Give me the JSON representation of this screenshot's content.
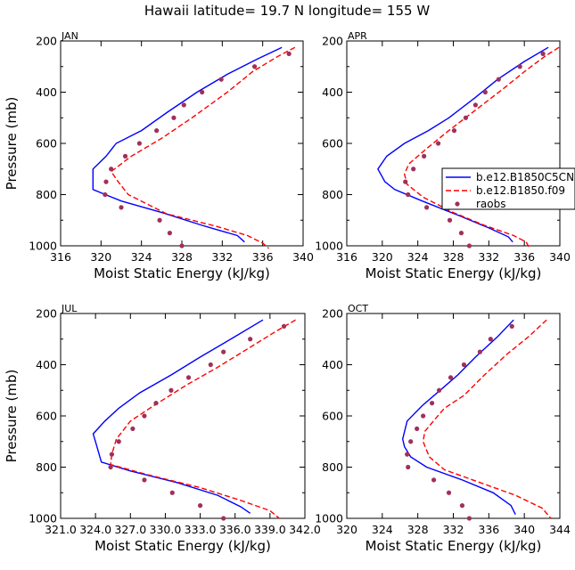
{
  "figure_title": "Hawaii  latitude= 19.7 N longitude= 155 W",
  "colors": {
    "model_c5": "#0000ff",
    "model_f09": "#ff0000",
    "roobs": "#a0305a"
  },
  "legend": {
    "entries": [
      "b.e12.B1850C5CN",
      "b.e12.B1850.f09",
      "raobs"
    ],
    "panel": "APR"
  },
  "chart_data": [
    {
      "type": "line",
      "panel": "JAN",
      "title": "JAN",
      "xlabel": "Moist Static Energy (kJ/kg)",
      "ylabel": "Pressure (mb)",
      "xlim": [
        316,
        340
      ],
      "ylim": [
        1000,
        200
      ],
      "xticks": [
        "316",
        "320",
        "324",
        "328",
        "332",
        "336",
        "340"
      ],
      "xtick_values": [
        316,
        320,
        324,
        328,
        332,
        336,
        340
      ],
      "yticks": [
        "200",
        "400",
        "600",
        "800",
        "1000"
      ],
      "ytick_values": [
        200,
        400,
        600,
        800,
        1000
      ],
      "series": [
        {
          "name": "b.e12.B1850C5CN",
          "style": "solid",
          "points": [
            [
              337.9,
              225
            ],
            [
              335.5,
              270
            ],
            [
              332.5,
              330
            ],
            [
              329.5,
              400
            ],
            [
              326.5,
              480
            ],
            [
              324.0,
              550
            ],
            [
              321.5,
              600
            ],
            [
              320.5,
              650
            ],
            [
              319.2,
              700
            ],
            [
              319.2,
              780
            ],
            [
              322.0,
              825
            ],
            [
              326.0,
              870
            ],
            [
              330.0,
              920
            ],
            [
              333.5,
              960
            ],
            [
              334.2,
              985
            ]
          ]
        },
        {
          "name": "b.e12.B1850.f09",
          "style": "dashed",
          "points": [
            [
              339.2,
              225
            ],
            [
              337.5,
              260
            ],
            [
              335.0,
              320
            ],
            [
              332.5,
              400
            ],
            [
              329.0,
              500
            ],
            [
              326.0,
              580
            ],
            [
              323.0,
              650
            ],
            [
              321.0,
              710
            ],
            [
              321.7,
              750
            ],
            [
              322.7,
              800
            ],
            [
              326.5,
              875
            ],
            [
              331.5,
              925
            ],
            [
              334.5,
              960
            ],
            [
              336.0,
              990
            ],
            [
              336.6,
              1010
            ]
          ]
        },
        {
          "name": "raobs",
          "style": "dots",
          "points": [
            [
              338.6,
              250
            ],
            [
              335.2,
              300
            ],
            [
              331.9,
              350
            ],
            [
              330.0,
              400
            ],
            [
              328.2,
              450
            ],
            [
              327.2,
              500
            ],
            [
              325.5,
              550
            ],
            [
              323.8,
              600
            ],
            [
              322.4,
              650
            ],
            [
              321.0,
              700
            ],
            [
              320.5,
              750
            ],
            [
              320.4,
              800
            ],
            [
              322.0,
              850
            ],
            [
              325.8,
              900
            ],
            [
              326.8,
              950
            ],
            [
              328.0,
              1000
            ]
          ]
        }
      ]
    },
    {
      "type": "line",
      "panel": "APR",
      "title": "APR",
      "xlabel": "Moist Static Energy (kJ/kg)",
      "ylabel": "",
      "xlim": [
        316,
        340
      ],
      "ylim": [
        1000,
        200
      ],
      "xticks": [
        "316",
        "320",
        "324",
        "328",
        "332",
        "336",
        "340"
      ],
      "xtick_values": [
        316,
        320,
        324,
        328,
        332,
        336,
        340
      ],
      "yticks": [
        "200",
        "400",
        "600",
        "800",
        "1000"
      ],
      "ytick_values": [
        200,
        400,
        600,
        800,
        1000
      ],
      "series": [
        {
          "name": "b.e12.B1850C5CN",
          "style": "solid",
          "points": [
            [
              338.7,
              225
            ],
            [
              336.0,
              280
            ],
            [
              333.0,
              350
            ],
            [
              330.5,
              420
            ],
            [
              327.5,
              500
            ],
            [
              325.2,
              550
            ],
            [
              322.5,
              600
            ],
            [
              320.5,
              650
            ],
            [
              319.5,
              700
            ],
            [
              320.3,
              750
            ],
            [
              321.4,
              780
            ],
            [
              324.5,
              825
            ],
            [
              328.5,
              880
            ],
            [
              332.0,
              930
            ],
            [
              334.2,
              965
            ],
            [
              334.7,
              985
            ]
          ]
        },
        {
          "name": "b.e12.B1850.f09",
          "style": "dashed",
          "points": [
            [
              339.9,
              225
            ],
            [
              338.3,
              260
            ],
            [
              336.0,
              320
            ],
            [
              333.5,
              390
            ],
            [
              330.5,
              470
            ],
            [
              327.5,
              550
            ],
            [
              325.0,
              620
            ],
            [
              323.0,
              680
            ],
            [
              322.5,
              720
            ],
            [
              322.8,
              760
            ],
            [
              324.6,
              810
            ],
            [
              328.0,
              870
            ],
            [
              331.5,
              920
            ],
            [
              334.8,
              960
            ],
            [
              336.2,
              985
            ],
            [
              336.6,
              1010
            ]
          ]
        },
        {
          "name": "raobs",
          "style": "dots",
          "points": [
            [
              338.1,
              250
            ],
            [
              335.5,
              300
            ],
            [
              333.1,
              350
            ],
            [
              331.6,
              400
            ],
            [
              330.5,
              450
            ],
            [
              329.4,
              500
            ],
            [
              328.1,
              550
            ],
            [
              326.3,
              600
            ],
            [
              324.7,
              650
            ],
            [
              323.5,
              700
            ],
            [
              322.6,
              750
            ],
            [
              322.9,
              800
            ],
            [
              325.0,
              850
            ],
            [
              327.6,
              900
            ],
            [
              328.9,
              950
            ],
            [
              329.8,
              1000
            ]
          ]
        }
      ]
    },
    {
      "type": "line",
      "panel": "JUL",
      "title": "JUL",
      "xlabel": "Moist Static Energy (kJ/kg)",
      "ylabel": "Pressure (mb)",
      "xlim": [
        321.0,
        342.0
      ],
      "ylim": [
        1000,
        200
      ],
      "xticks": [
        "321.0",
        "324.0",
        "327.0",
        "330.0",
        "333.0",
        "336.0",
        "339.0",
        "342.0"
      ],
      "xtick_values": [
        321.0,
        324.0,
        327.0,
        330.0,
        333.0,
        336.0,
        339.0,
        342.0
      ],
      "yticks": [
        "200",
        "400",
        "600",
        "800",
        "1000"
      ],
      "ytick_values": [
        200,
        400,
        600,
        800,
        1000
      ],
      "series": [
        {
          "name": "b.e12.B1850C5CN",
          "style": "solid",
          "points": [
            [
              338.4,
              225
            ],
            [
              336.0,
              290
            ],
            [
              333.0,
              370
            ],
            [
              330.5,
              440
            ],
            [
              327.8,
              510
            ],
            [
              326.0,
              570
            ],
            [
              324.8,
              620
            ],
            [
              323.8,
              670
            ],
            [
              324.0,
              700
            ],
            [
              324.5,
              780
            ],
            [
              327.0,
              815
            ],
            [
              331.0,
              860
            ],
            [
              334.5,
              910
            ],
            [
              336.5,
              955
            ],
            [
              337.3,
              980
            ]
          ]
        },
        {
          "name": "b.e12.B1850.f09",
          "style": "dashed",
          "points": [
            [
              341.2,
              225
            ],
            [
              339.5,
              270
            ],
            [
              337.0,
              340
            ],
            [
              334.5,
              410
            ],
            [
              331.8,
              480
            ],
            [
              329.0,
              560
            ],
            [
              327.0,
              620
            ],
            [
              325.8,
              690
            ],
            [
              325.4,
              750
            ],
            [
              325.3,
              790
            ],
            [
              328.5,
              830
            ],
            [
              333.0,
              880
            ],
            [
              336.5,
              930
            ],
            [
              339.0,
              970
            ],
            [
              339.8,
              1000
            ]
          ]
        },
        {
          "name": "raobs",
          "style": "dots",
          "points": [
            [
              340.2,
              250
            ],
            [
              337.3,
              300
            ],
            [
              335.0,
              350
            ],
            [
              333.9,
              400
            ],
            [
              332.0,
              450
            ],
            [
              330.5,
              500
            ],
            [
              329.2,
              550
            ],
            [
              328.2,
              600
            ],
            [
              327.2,
              650
            ],
            [
              326.0,
              700
            ],
            [
              325.4,
              750
            ],
            [
              325.3,
              800
            ],
            [
              328.2,
              850
            ],
            [
              330.6,
              900
            ],
            [
              333.0,
              950
            ],
            [
              335.0,
              1000
            ]
          ]
        }
      ]
    },
    {
      "type": "line",
      "panel": "OCT",
      "title": "OCT",
      "xlabel": "Moist Static Energy (kJ/kg)",
      "ylabel": "",
      "xlim": [
        320,
        344
      ],
      "ylim": [
        1000,
        200
      ],
      "xticks": [
        "320",
        "324",
        "328",
        "332",
        "336",
        "340",
        "344"
      ],
      "xtick_values": [
        320,
        324,
        328,
        332,
        336,
        340,
        344
      ],
      "yticks": [
        "200",
        "400",
        "600",
        "800",
        "1000"
      ],
      "ytick_values": [
        200,
        400,
        600,
        800,
        1000
      ],
      "series": [
        {
          "name": "b.e12.B1850C5CN",
          "style": "solid",
          "points": [
            [
              338.8,
              225
            ],
            [
              337.0,
              290
            ],
            [
              334.5,
              370
            ],
            [
              332.5,
              440
            ],
            [
              330.5,
              500
            ],
            [
              328.5,
              560
            ],
            [
              326.8,
              620
            ],
            [
              326.3,
              690
            ],
            [
              326.5,
              720
            ],
            [
              327.2,
              760
            ],
            [
              329.0,
              800
            ],
            [
              333.0,
              850
            ],
            [
              336.5,
              900
            ],
            [
              338.5,
              950
            ],
            [
              339.0,
              985
            ]
          ]
        },
        {
          "name": "b.e12.B1850.f09",
          "style": "dashed",
          "points": [
            [
              342.5,
              225
            ],
            [
              340.5,
              290
            ],
            [
              338.0,
              360
            ],
            [
              335.5,
              440
            ],
            [
              333.2,
              520
            ],
            [
              331.0,
              570
            ],
            [
              330.0,
              610
            ],
            [
              328.8,
              660
            ],
            [
              328.6,
              700
            ],
            [
              329.3,
              760
            ],
            [
              331.0,
              810
            ],
            [
              335.0,
              860
            ],
            [
              339.0,
              910
            ],
            [
              342.0,
              960
            ],
            [
              343.0,
              1000
            ]
          ]
        },
        {
          "name": "raobs",
          "style": "dots",
          "points": [
            [
              338.6,
              250
            ],
            [
              336.2,
              300
            ],
            [
              335.0,
              350
            ],
            [
              333.2,
              400
            ],
            [
              331.7,
              450
            ],
            [
              330.4,
              500
            ],
            [
              329.6,
              550
            ],
            [
              328.6,
              600
            ],
            [
              327.9,
              650
            ],
            [
              327.2,
              700
            ],
            [
              326.8,
              750
            ],
            [
              326.9,
              800
            ],
            [
              329.8,
              850
            ],
            [
              331.5,
              900
            ],
            [
              333.0,
              950
            ],
            [
              333.8,
              1000
            ]
          ]
        }
      ]
    }
  ]
}
